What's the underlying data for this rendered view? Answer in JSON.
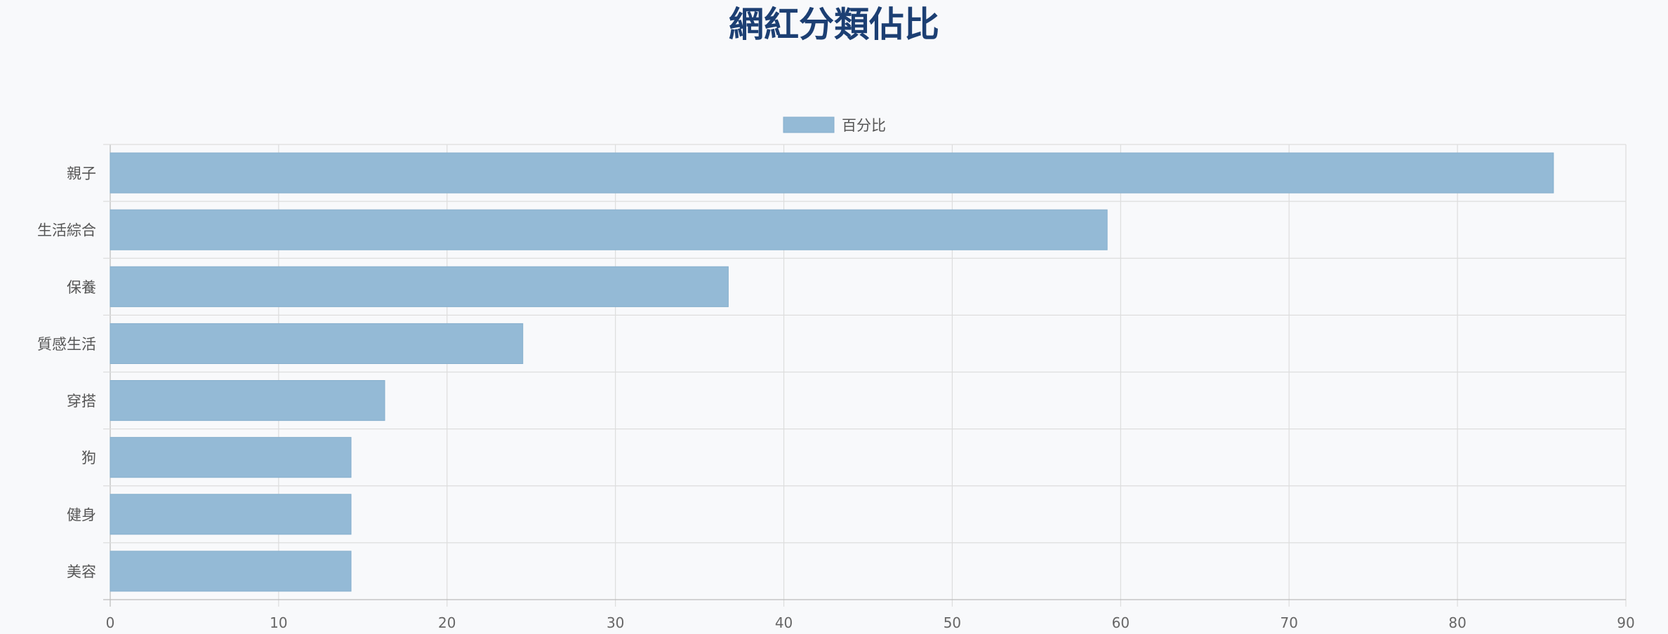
{
  "chart_data": {
    "type": "bar",
    "orientation": "horizontal",
    "title": "網紅分類佔比",
    "categories": [
      "親子",
      "生活綜合",
      "保養",
      "質感生活",
      "穿搭",
      "狗",
      "健身",
      "美容"
    ],
    "series": [
      {
        "name": "百分比",
        "values": [
          85.7,
          59.2,
          36.7,
          24.5,
          16.3,
          14.3,
          14.3,
          14.3
        ]
      }
    ],
    "xlim": [
      0,
      90
    ],
    "xticks": [
      0,
      10,
      20,
      30,
      40,
      50,
      60,
      70,
      80,
      90
    ],
    "grid": true,
    "legend_position": "top-center",
    "colors": {
      "bar": "#94bad6",
      "bar_border": "#86afcd",
      "title": "#1c3f73",
      "grid": "#dddddd",
      "axis": "#bbbbbb"
    }
  }
}
